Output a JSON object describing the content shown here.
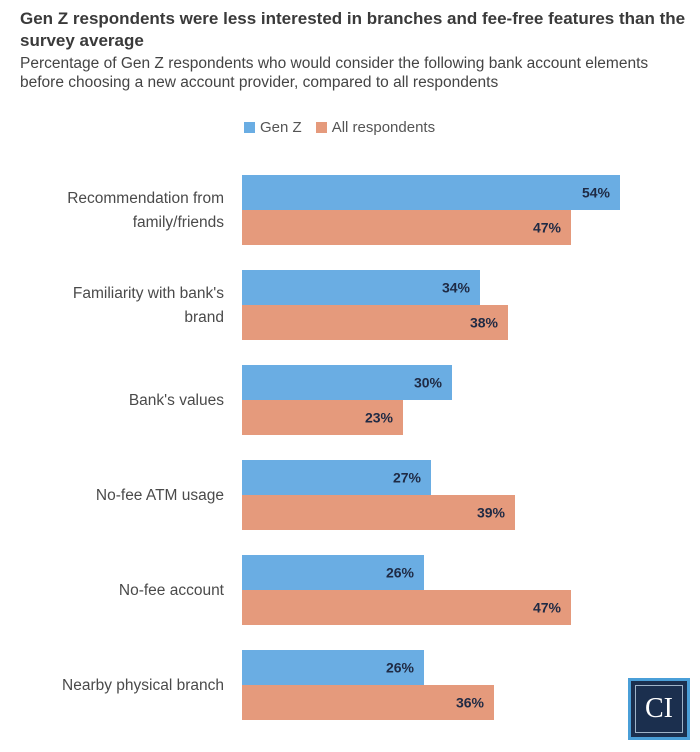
{
  "title": "Gen Z respondents were less interested in branches and fee-free features than the survey average",
  "subtitle": "Percentage of Gen Z respondents who would consider the following bank account elements before choosing a new account provider, compared to all respondents",
  "logo_text": "CI",
  "colors": {
    "gen_z": "#6aade3",
    "all": "#e59a7c",
    "value_text": "#1f2a44"
  },
  "chart_data": {
    "type": "bar",
    "orientation": "horizontal",
    "title": "Gen Z respondents were less interested in branches and fee-free features than the survey average",
    "subtitle": "Percentage of Gen Z respondents who would consider the following bank account elements before choosing a new account provider, compared to all respondents",
    "xlabel": "",
    "ylabel": "",
    "xlim": [
      0,
      60
    ],
    "grid": false,
    "legend_position": "top",
    "value_suffix": "%",
    "categories": [
      [
        "Recommendation from",
        "family/friends"
      ],
      [
        "Familiarity with bank's",
        "brand"
      ],
      [
        "Bank's values"
      ],
      [
        "No-fee ATM usage"
      ],
      [
        "No-fee account"
      ],
      [
        "Nearby physical branch"
      ]
    ],
    "series": [
      {
        "name": "Gen Z",
        "color": "#6aade3",
        "values": [
          54,
          34,
          30,
          27,
          26,
          26
        ]
      },
      {
        "name": "All respondents",
        "color": "#e59a7c",
        "values": [
          47,
          38,
          23,
          39,
          47,
          36
        ]
      }
    ]
  }
}
